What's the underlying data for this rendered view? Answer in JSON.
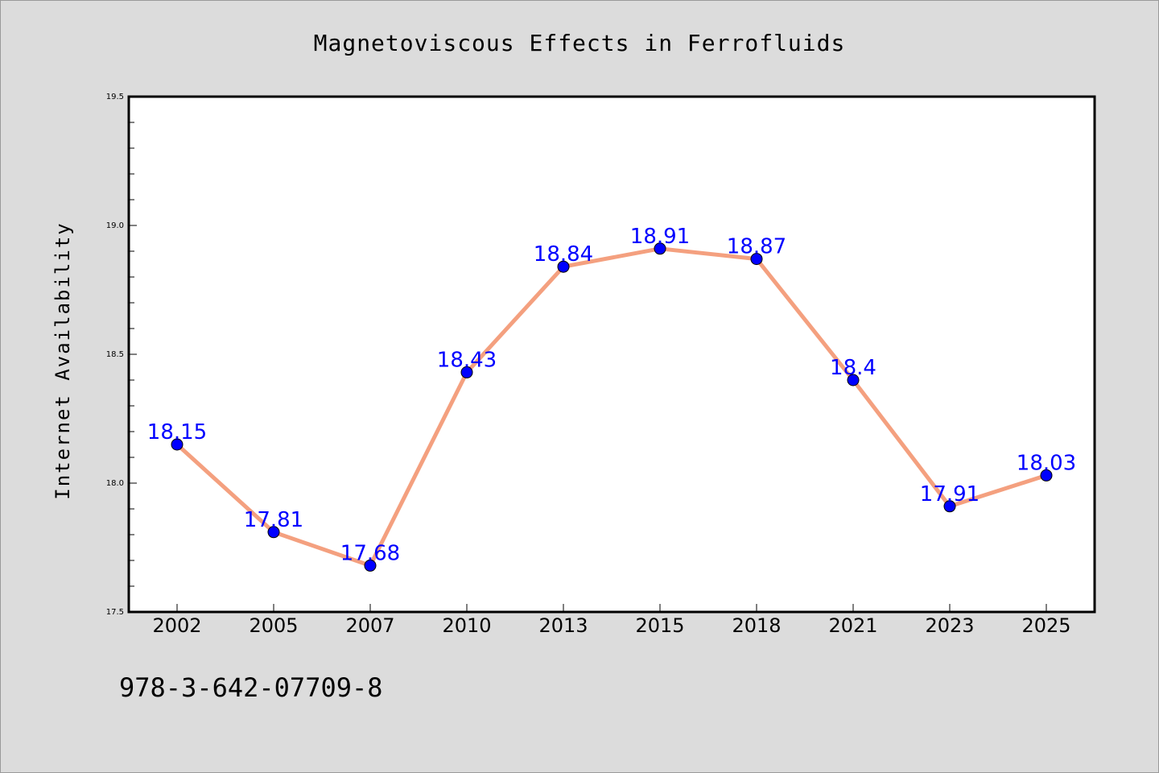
{
  "chart_data": {
    "type": "line",
    "title": "Magnetoviscous Effects in Ferrofluids",
    "xlabel": "",
    "ylabel": "Internet Availability",
    "categories": [
      "2002",
      "2005",
      "2007",
      "2010",
      "2013",
      "2015",
      "2018",
      "2021",
      "2023",
      "2025"
    ],
    "series": [
      {
        "values": [
          18.15,
          17.81,
          17.68,
          18.43,
          18.84,
          18.91,
          18.87,
          18.4,
          17.91,
          18.03
        ],
        "labels": [
          "18.15",
          "17.81",
          "17.68",
          "18.43",
          "18.84",
          "18.91",
          "18.87",
          "18.4",
          "17.91",
          "18.03"
        ],
        "line_color": "#f4a07f",
        "marker_color": "#0000ff",
        "label_color": "#0000ff"
      }
    ],
    "ylim": [
      17.5,
      19.5
    ],
    "yticks": [
      "17.5",
      "18.0",
      "18.5",
      "19.0",
      "19.5"
    ],
    "grid": false,
    "legend": "none"
  },
  "footer": {
    "isbn": "978-3-642-07709-8"
  },
  "colors": {
    "background": "#dcdcdc",
    "plot_background": "#ffffff"
  }
}
